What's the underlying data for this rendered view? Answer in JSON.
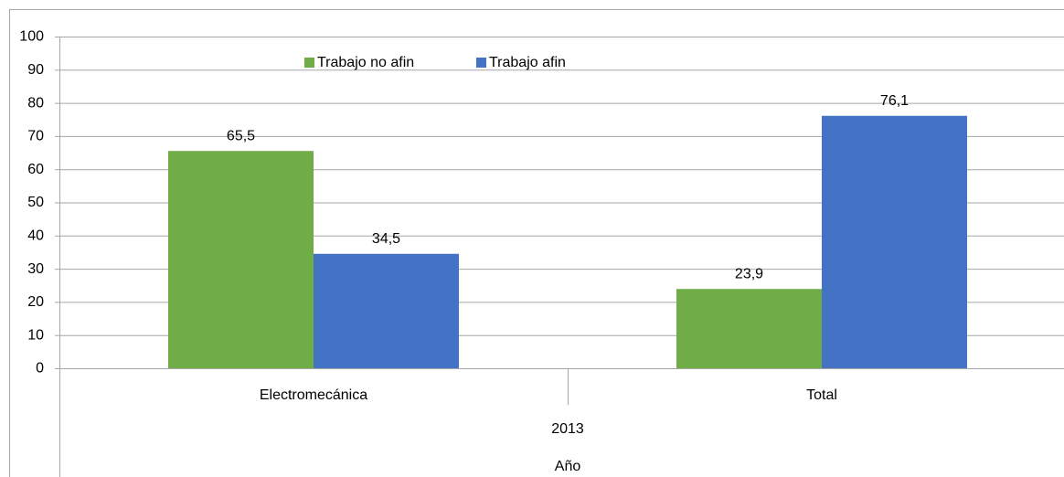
{
  "chart_data": {
    "type": "bar",
    "categories": [
      "Electromecánica",
      "Total"
    ],
    "x_group": "2013",
    "x_label": "Año",
    "series": [
      {
        "name": "Trabajo no afin",
        "color": "#70ad47",
        "values": [
          65.5,
          23.9
        ],
        "value_labels": [
          "65,5",
          "23,9"
        ]
      },
      {
        "name": "Trabajo afin",
        "color": "#4472c4",
        "values": [
          34.5,
          76.1
        ],
        "value_labels": [
          "34,5",
          "76,1"
        ]
      }
    ],
    "ylim": [
      0,
      100
    ],
    "yticks": [
      0,
      10,
      20,
      30,
      40,
      50,
      60,
      70,
      80,
      90,
      100
    ],
    "grid": true,
    "legend": "top"
  }
}
